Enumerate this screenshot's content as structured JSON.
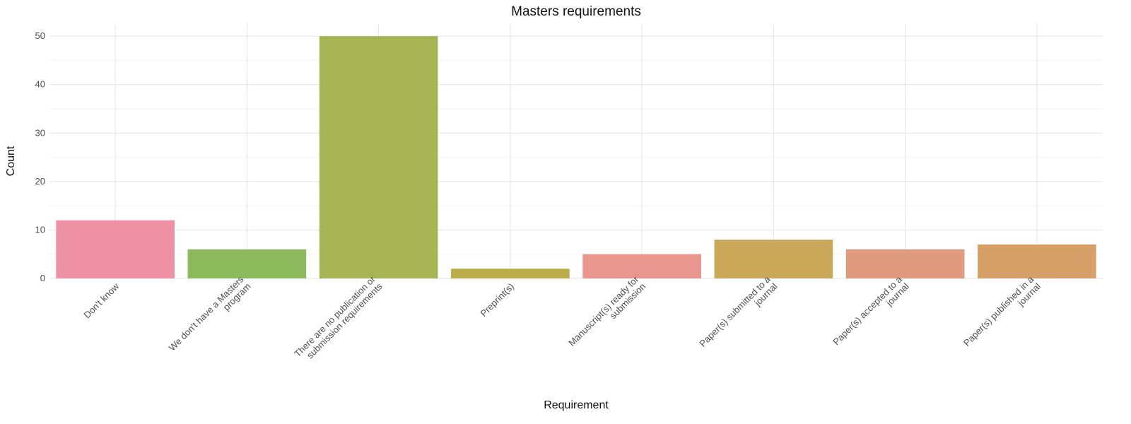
{
  "chart_data": {
    "type": "bar",
    "title": "Masters requirements",
    "xlabel": "Requirement",
    "ylabel": "Count",
    "ylim": [
      0,
      52.5
    ],
    "yticks": [
      0,
      10,
      20,
      30,
      40,
      50
    ],
    "grid": true,
    "legend": "none",
    "categories": [
      "Don't know",
      "We don't have a Masters program",
      "There are no publication or submission requirements",
      "Preprint(s)",
      "Manuscript(s) ready for submission",
      "Paper(s) submitted to a journal",
      "Paper(s) accepted to a journal",
      "Paper(s) published in a journal"
    ],
    "tick_label_lines": [
      [
        "Don't know"
      ],
      [
        "We don't have a Masters",
        "program"
      ],
      [
        "There are no publication or",
        "submission requirements"
      ],
      [
        "Preprint(s)"
      ],
      [
        "Manuscript(s) ready for",
        "submission"
      ],
      [
        "Paper(s) submitted to a",
        "journal"
      ],
      [
        "Paper(s) accepted to a",
        "journal"
      ],
      [
        "Paper(s) published in a",
        "journal"
      ]
    ],
    "values": [
      12,
      6,
      50,
      2,
      5,
      8,
      6,
      7
    ],
    "colors": [
      "#ee91a5",
      "#8db95d",
      "#a6b453",
      "#bcab49",
      "#e8968e",
      "#c9a85a",
      "#e09a7e",
      "#d7a068"
    ]
  }
}
